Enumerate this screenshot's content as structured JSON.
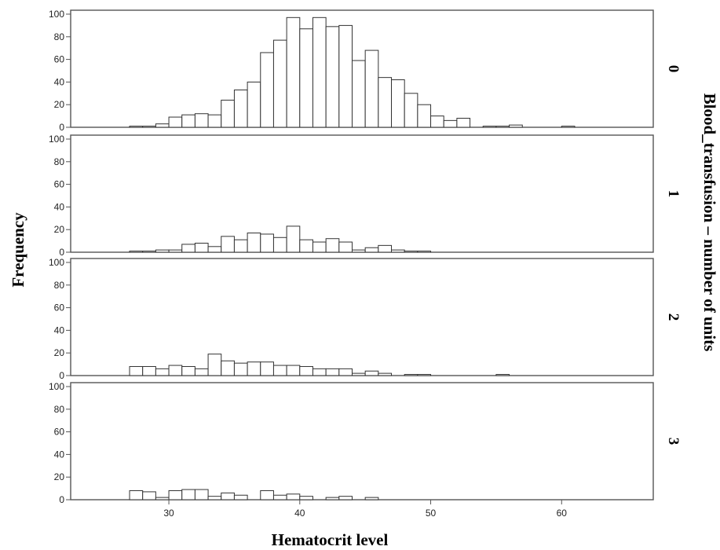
{
  "chart_data": {
    "type": "histogram",
    "xlabel": "Hematocrit level",
    "ylabel": "Frequency",
    "facet_title": "Blood_transfusion – number of units",
    "x_ticks": [
      30,
      40,
      50,
      60
    ],
    "y_ticks": [
      0,
      20,
      40,
      60,
      80,
      100
    ],
    "xlim": [
      22.5,
      67
    ],
    "ylim": [
      0,
      100
    ],
    "bin_start": 27,
    "bin_width": 1,
    "panels": [
      {
        "name": "0",
        "bin_starts": [
          27,
          28,
          29,
          30,
          31,
          32,
          33,
          34,
          35,
          36,
          37,
          38,
          39,
          40,
          41,
          42,
          43,
          44,
          45,
          46,
          47,
          48,
          49,
          50,
          51,
          52,
          54,
          55,
          56,
          60
        ],
        "values": [
          1,
          1,
          3,
          9,
          11,
          12,
          11,
          24,
          33,
          40,
          66,
          77,
          97,
          87,
          97,
          89,
          90,
          59,
          68,
          44,
          42,
          30,
          20,
          10,
          6,
          8,
          1,
          1,
          2,
          1
        ]
      },
      {
        "name": "1",
        "bin_starts": [
          27,
          28,
          29,
          30,
          31,
          32,
          33,
          34,
          35,
          36,
          37,
          38,
          39,
          40,
          41,
          42,
          43,
          44,
          45,
          46,
          47,
          48,
          49
        ],
        "values": [
          1,
          1,
          2,
          2,
          7,
          8,
          5,
          14,
          11,
          17,
          16,
          13,
          23,
          11,
          9,
          12,
          9,
          2,
          4,
          6,
          2,
          1,
          1
        ]
      },
      {
        "name": "2",
        "bin_starts": [
          27,
          28,
          29,
          30,
          31,
          32,
          33,
          34,
          35,
          36,
          37,
          38,
          39,
          40,
          41,
          42,
          43,
          44,
          45,
          46,
          48,
          49,
          55
        ],
        "values": [
          8,
          8,
          6,
          9,
          8,
          6,
          19,
          13,
          11,
          12,
          12,
          9,
          9,
          8,
          6,
          6,
          6,
          2,
          4,
          2,
          1,
          1,
          1
        ]
      },
      {
        "name": "3",
        "bin_starts": [
          27,
          28,
          29,
          30,
          31,
          32,
          33,
          34,
          35,
          37,
          38,
          39,
          40,
          42,
          43,
          45
        ],
        "values": [
          8,
          7,
          2,
          8,
          9,
          9,
          3,
          6,
          4,
          8,
          4,
          5,
          3,
          2,
          3,
          2
        ]
      }
    ]
  }
}
